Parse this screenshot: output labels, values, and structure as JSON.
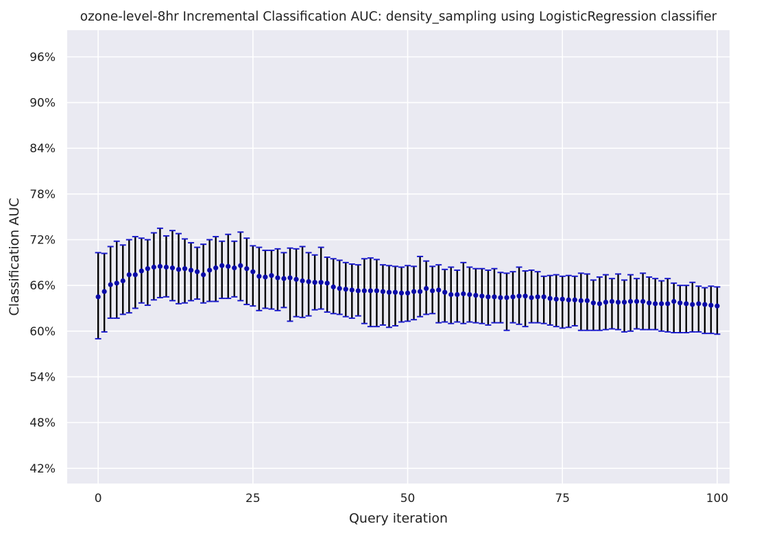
{
  "chart_data": {
    "type": "scatter",
    "title": "ozone-level-8hr Incremental Classification AUC: density_sampling using LogisticRegression classifier",
    "xlabel": "Query iteration",
    "ylabel": "Classification AUC",
    "xlim": [
      -5,
      102
    ],
    "ylim": [
      40,
      99.5
    ],
    "xticks": [
      0,
      25,
      50,
      75,
      100
    ],
    "xtick_labels": [
      "0",
      "25",
      "50",
      "75",
      "100"
    ],
    "yticks": [
      42,
      48,
      54,
      60,
      66,
      72,
      78,
      84,
      90,
      96
    ],
    "ytick_labels": [
      "42%",
      "48%",
      "54%",
      "60%",
      "66%",
      "72%",
      "78%",
      "84%",
      "90%",
      "96%"
    ],
    "grid": true,
    "colors": {
      "background": "#eaeaf2",
      "grid": "#ffffff",
      "marker": "#0a0aa8",
      "error_bar": "#000000",
      "cap": "#1a1acc"
    },
    "x": [
      0,
      1,
      2,
      3,
      4,
      5,
      6,
      7,
      8,
      9,
      10,
      11,
      12,
      13,
      14,
      15,
      16,
      17,
      18,
      19,
      20,
      21,
      22,
      23,
      24,
      25,
      26,
      27,
      28,
      29,
      30,
      31,
      32,
      33,
      34,
      35,
      36,
      37,
      38,
      39,
      40,
      41,
      42,
      43,
      44,
      45,
      46,
      47,
      48,
      49,
      50,
      51,
      52,
      53,
      54,
      55,
      56,
      57,
      58,
      59,
      60,
      61,
      62,
      63,
      64,
      65,
      66,
      67,
      68,
      69,
      70,
      71,
      72,
      73,
      74,
      75,
      76,
      77,
      78,
      79,
      80,
      81,
      82,
      83,
      84,
      85,
      86,
      87,
      88,
      89,
      90,
      91,
      92,
      93,
      94,
      95,
      96,
      97,
      98,
      99,
      100
    ],
    "mean": [
      64.5,
      65.2,
      66.1,
      66.3,
      66.6,
      67.4,
      67.4,
      67.9,
      68.2,
      68.4,
      68.5,
      68.4,
      68.3,
      68.1,
      68.2,
      68.0,
      67.8,
      67.4,
      68.0,
      68.3,
      68.6,
      68.5,
      68.3,
      68.6,
      68.2,
      67.8,
      67.2,
      67.1,
      67.3,
      67.0,
      66.9,
      67.0,
      66.8,
      66.6,
      66.5,
      66.4,
      66.4,
      66.3,
      65.8,
      65.6,
      65.5,
      65.4,
      65.3,
      65.3,
      65.3,
      65.3,
      65.2,
      65.1,
      65.1,
      65.0,
      65.0,
      65.2,
      65.2,
      65.6,
      65.3,
      65.4,
      65.1,
      64.8,
      64.8,
      64.9,
      64.8,
      64.7,
      64.6,
      64.5,
      64.5,
      64.4,
      64.4,
      64.5,
      64.6,
      64.6,
      64.4,
      64.5,
      64.5,
      64.3,
      64.2,
      64.2,
      64.1,
      64.1,
      64.0,
      64.0,
      63.7,
      63.6,
      63.8,
      63.9,
      63.8,
      63.8,
      63.9,
      63.9,
      63.9,
      63.7,
      63.6,
      63.6,
      63.6,
      63.9,
      63.7,
      63.6,
      63.5,
      63.6,
      63.5,
      63.4,
      63.3
    ],
    "upper": [
      70.3,
      70.2,
      71.1,
      71.8,
      71.3,
      72.0,
      72.4,
      72.2,
      72.0,
      72.9,
      73.5,
      72.5,
      73.2,
      72.8,
      72.1,
      71.6,
      71.0,
      71.4,
      72.0,
      72.4,
      71.8,
      72.7,
      71.8,
      73.0,
      72.2,
      71.2,
      71.0,
      70.6,
      70.6,
      70.8,
      70.3,
      70.9,
      70.8,
      71.1,
      70.3,
      70.0,
      71.0,
      69.7,
      69.5,
      69.3,
      69.0,
      68.8,
      68.7,
      69.5,
      69.6,
      69.4,
      68.7,
      68.6,
      68.5,
      68.4,
      68.6,
      68.5,
      69.8,
      69.2,
      68.5,
      68.7,
      68.1,
      68.4,
      68.0,
      69.0,
      68.4,
      68.2,
      68.2,
      68.0,
      68.2,
      67.7,
      67.6,
      67.8,
      68.4,
      67.9,
      68.0,
      67.8,
      67.2,
      67.3,
      67.4,
      67.2,
      67.3,
      67.2,
      67.6,
      67.5,
      66.7,
      67.1,
      67.4,
      66.9,
      67.5,
      66.7,
      67.4,
      66.9,
      67.6,
      67.1,
      66.9,
      66.6,
      66.9,
      66.3,
      66.0,
      66.0,
      66.4,
      65.9,
      65.7,
      65.9,
      65.8
    ],
    "lower": [
      59.0,
      59.9,
      61.7,
      61.7,
      62.2,
      62.4,
      63.0,
      63.7,
      63.4,
      64.1,
      64.4,
      64.5,
      64.0,
      63.6,
      63.7,
      64.0,
      64.2,
      63.7,
      63.9,
      63.9,
      64.3,
      64.3,
      64.5,
      64.0,
      63.5,
      63.3,
      62.7,
      63.0,
      62.9,
      62.7,
      63.1,
      61.3,
      61.9,
      61.8,
      62.0,
      62.8,
      62.9,
      62.5,
      62.3,
      62.2,
      61.9,
      61.7,
      62.0,
      61.0,
      60.6,
      60.6,
      60.8,
      60.5,
      60.7,
      61.2,
      61.3,
      61.5,
      61.9,
      62.2,
      62.3,
      61.1,
      61.2,
      61.0,
      61.2,
      61.0,
      61.2,
      61.1,
      61.0,
      60.8,
      61.1,
      61.1,
      60.1,
      61.1,
      60.9,
      60.6,
      61.1,
      61.1,
      61.0,
      60.8,
      60.6,
      60.4,
      60.5,
      60.7,
      60.1,
      60.1,
      60.1,
      60.1,
      60.2,
      60.3,
      60.2,
      59.9,
      60.0,
      60.3,
      60.2,
      60.2,
      60.2,
      60.0,
      59.9,
      59.8,
      59.8,
      59.8,
      59.9,
      59.9,
      59.7,
      59.7,
      59.6
    ]
  }
}
